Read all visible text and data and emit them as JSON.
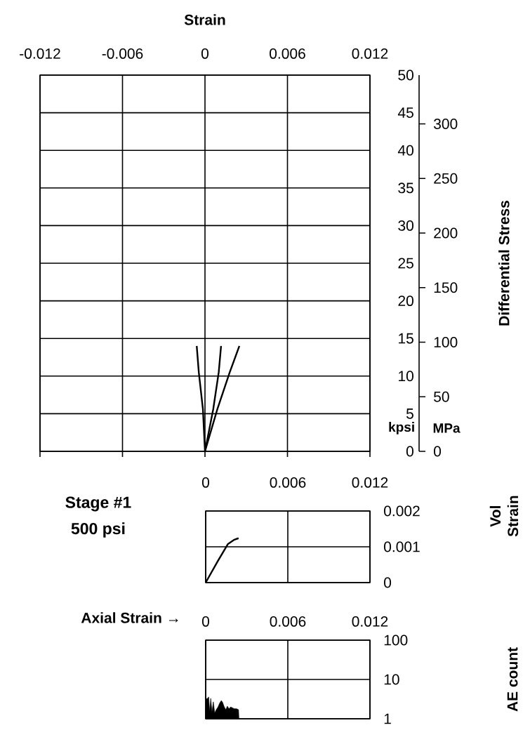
{
  "chart_data": [
    {
      "type": "line",
      "xlabel": "Strain",
      "y2label": "Differential Stress",
      "xlim": [
        -0.012,
        0.012
      ],
      "xticks": [
        -0.012,
        -0.006,
        0,
        0.006,
        0.012
      ],
      "ylim": [
        0,
        50
      ],
      "yticks": [
        0,
        5,
        10,
        15,
        20,
        25,
        30,
        35,
        40,
        45,
        50
      ],
      "y2lim": [
        0,
        344.7
      ],
      "y2ticks": [
        0,
        50,
        100,
        150,
        200,
        250,
        300
      ],
      "grid": true,
      "annotations": [
        "kpsi",
        "MPa"
      ],
      "series": [
        {
          "color": "#000000",
          "x": [
            0,
            -0.00015,
            -0.00045,
            -0.0006
          ],
          "values": [
            0,
            5.6,
            10.5,
            14
          ]
        },
        {
          "color": "#000000",
          "x": [
            0,
            0.0006,
            0.001,
            0.00117
          ],
          "values": [
            0,
            5.6,
            10.5,
            14
          ]
        },
        {
          "color": "#000000",
          "x": [
            0,
            0.0009,
            0.0018,
            0.0025
          ],
          "values": [
            0,
            5.6,
            10.5,
            14
          ]
        }
      ]
    },
    {
      "type": "line",
      "ylabel": "Vol Strain",
      "xlim": [
        0,
        0.012
      ],
      "xticks": [
        0,
        0.006,
        0.012
      ],
      "ylim": [
        0,
        0.002
      ],
      "yticks": [
        0,
        0.001,
        0.002
      ],
      "grid": true,
      "annotations": [
        "Stage #1",
        "500 psi"
      ],
      "series": [
        {
          "color": "#000000",
          "x": [
            0,
            0.00087,
            0.00163,
            0.0021,
            0.0024
          ],
          "values": [
            0,
            0.00059,
            0.00108,
            0.0012,
            0.00124
          ]
        }
      ]
    },
    {
      "type": "area",
      "log": "y",
      "xlabel": "Axial Strain →",
      "ylabel": "AE count",
      "xlim": [
        0,
        0.012
      ],
      "xticks": [
        0,
        0.006,
        0.012
      ],
      "ylim": [
        1,
        100
      ],
      "yticks": [
        1,
        10,
        100
      ],
      "grid": true,
      "series": [
        {
          "color": "#000000",
          "x": [
            0,
            5e-05,
            0.00014,
            0.00022,
            0.00029,
            0.00037,
            0.00046,
            0.00056,
            0.00066,
            0.00077,
            0.0009,
            0.00102,
            0.00114,
            0.00124,
            0.00136,
            0.00148,
            0.00158,
            0.0017,
            0.00182,
            0.00196,
            0.00209,
            0.00226,
            0.0024,
            0.00243
          ],
          "values": [
            1,
            3.2,
            3.3,
            3.6,
            1.55,
            3.3,
            1.5,
            2.7,
            1.4,
            1.7,
            2.0,
            2.5,
            2.9,
            2.6,
            2.0,
            1.7,
            2.1,
            1.8,
            2.0,
            1.9,
            1.8,
            1.8,
            1.7,
            1
          ]
        }
      ]
    }
  ]
}
